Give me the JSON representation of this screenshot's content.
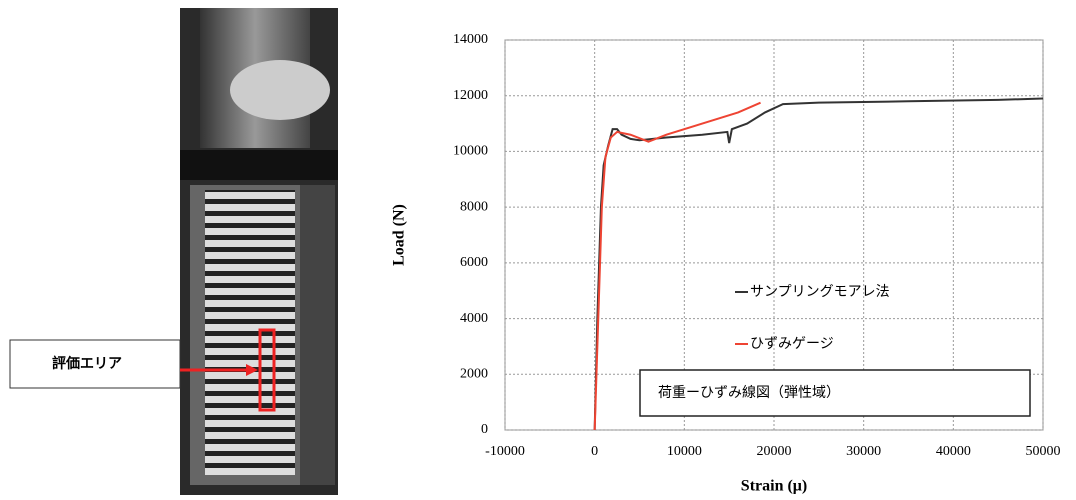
{
  "callout": "評価エリア",
  "chart_data": {
    "type": "line",
    "xlabel": "Strain (μ)",
    "ylabel": "Load (N)",
    "annotation": "荷重ーひずみ線図（弾性域）",
    "xlim": [
      -10000,
      50000
    ],
    "xticks": [
      -10000,
      0,
      10000,
      20000,
      30000,
      40000,
      50000
    ],
    "ylim": [
      0,
      14000
    ],
    "yticks": [
      0,
      2000,
      4000,
      6000,
      8000,
      10000,
      12000,
      14000
    ],
    "grid": true,
    "series": [
      {
        "name": "サンプリングモアレ法",
        "color": "#333333",
        "x": [
          0,
          300,
          700,
          1000,
          1500,
          2000,
          2500,
          3000,
          4000,
          5000,
          8000,
          12000,
          14800,
          15000,
          15300,
          17000,
          19000,
          21000,
          25000,
          35000,
          45000,
          50000
        ],
        "values": [
          0,
          4000,
          8000,
          9500,
          10200,
          10800,
          10800,
          10600,
          10450,
          10400,
          10500,
          10600,
          10700,
          10300,
          10800,
          11000,
          11400,
          11700,
          11750,
          11800,
          11850,
          11900
        ]
      },
      {
        "name": "ひずみゲージ",
        "color": "#ee4433",
        "x": [
          0,
          200,
          500,
          800,
          1200,
          1800,
          2500,
          4000,
          6000,
          8000,
          12000,
          16000,
          18500
        ],
        "values": [
          0,
          2000,
          5000,
          8000,
          9800,
          10500,
          10700,
          10600,
          10350,
          10600,
          11000,
          11400,
          11750
        ]
      }
    ]
  }
}
